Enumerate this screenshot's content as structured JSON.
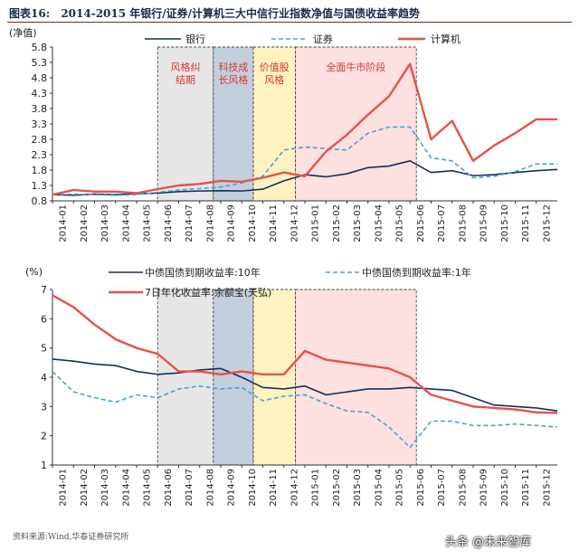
{
  "figure": {
    "label": "图表16:",
    "title": "2014-2015 年银行/证券/计算机三大中信行业指数净值与国债收益率趋势",
    "source": "资料来源:Wind,华泰证券研究所",
    "watermark": "头条 @未来智库"
  },
  "colors": {
    "bank": "#14305f",
    "securities": "#4aa3d8",
    "computer": "#e8504a",
    "shade_gray": "#e6e6e6",
    "shade_blue": "#c4cfdd",
    "shade_yellow": "#fff2c2",
    "shade_pink": "#fde0e0"
  },
  "chart_data": [
    {
      "type": "line",
      "ylabel": "(净值)",
      "ylim": [
        0.8,
        5.8
      ],
      "yticks": [
        "0.8",
        "1.3",
        "1.8",
        "2.3",
        "2.8",
        "3.3",
        "3.8",
        "4.3",
        "4.8",
        "5.3",
        "5.8"
      ],
      "xticks": [
        "2014-01",
        "2014-02",
        "2014-03",
        "2014-04",
        "2014-05",
        "2014-06",
        "2014-07",
        "2014-08",
        "2014-09",
        "2014-10",
        "2014-11",
        "2014-12",
        "2015-01",
        "2015-02",
        "2015-03",
        "2015-04",
        "2015-05",
        "2015-06",
        "2015-07",
        "2015-08",
        "2015-09",
        "2015-10",
        "2015-11",
        "2015-12"
      ],
      "x": [
        0,
        1,
        2,
        3,
        4,
        5,
        6,
        7,
        8,
        9,
        10,
        11,
        12,
        13,
        14,
        15,
        16,
        17,
        18,
        19,
        20,
        21,
        22,
        23,
        24
      ],
      "legend_placement": "top",
      "series": [
        {
          "name": "银行",
          "style": "solid",
          "values": [
            1.0,
            0.98,
            1.02,
            1.0,
            1.03,
            1.05,
            1.1,
            1.12,
            1.13,
            1.12,
            1.18,
            1.45,
            1.65,
            1.58,
            1.68,
            1.88,
            1.93,
            2.1,
            1.72,
            1.78,
            1.62,
            1.65,
            1.72,
            1.78,
            1.82
          ]
        },
        {
          "name": "证券",
          "style": "dashed",
          "values": [
            1.0,
            1.02,
            1.0,
            0.98,
            1.0,
            1.08,
            1.15,
            1.2,
            1.25,
            1.38,
            1.6,
            2.45,
            2.55,
            2.5,
            2.45,
            3.0,
            3.2,
            3.2,
            2.2,
            2.1,
            1.55,
            1.6,
            1.75,
            2.0,
            2.0
          ]
        },
        {
          "name": "计算机",
          "style": "solid",
          "values": [
            1.0,
            1.15,
            1.1,
            1.1,
            1.05,
            1.18,
            1.3,
            1.35,
            1.45,
            1.42,
            1.55,
            1.72,
            1.6,
            2.4,
            2.95,
            3.6,
            4.2,
            5.25,
            2.8,
            3.4,
            2.1,
            2.6,
            3.0,
            3.45,
            3.45
          ]
        }
      ],
      "bands": [
        {
          "label": "风格纠结期",
          "from": 5.0,
          "to": 7.65,
          "fill": "gray"
        },
        {
          "label": "科技成长风格",
          "from": 7.65,
          "to": 9.55,
          "fill": "blue"
        },
        {
          "label": "价值股风格",
          "from": 9.55,
          "to": 11.55,
          "fill": "yellow"
        },
        {
          "label": "全面牛市阶段",
          "from": 11.55,
          "to": 17.3,
          "fill": "pink"
        }
      ]
    },
    {
      "type": "line",
      "ylabel": "(%)",
      "ylim": [
        1,
        7
      ],
      "yticks": [
        "1",
        "2",
        "3",
        "4",
        "5",
        "6",
        "7"
      ],
      "xticks": [
        "2014-01",
        "2014-02",
        "2014-03",
        "2014-04",
        "2014-05",
        "2014-06",
        "2014-07",
        "2014-08",
        "2014-09",
        "2014-10",
        "2014-11",
        "2014-12",
        "2015-01",
        "2015-02",
        "2015-03",
        "2015-04",
        "2015-05",
        "2015-06",
        "2015-07",
        "2015-08",
        "2015-09",
        "2015-10",
        "2015-11",
        "2015-12"
      ],
      "x": [
        0,
        1,
        2,
        3,
        4,
        5,
        6,
        7,
        8,
        9,
        10,
        11,
        12,
        13,
        14,
        15,
        16,
        17,
        18,
        19,
        20,
        21,
        22,
        23,
        24
      ],
      "legend_placement": "top",
      "series": [
        {
          "name": "中债国债到期收益率:10年",
          "style": "solid",
          "values": [
            4.62,
            4.55,
            4.45,
            4.4,
            4.2,
            4.1,
            4.15,
            4.25,
            4.3,
            4.0,
            3.65,
            3.6,
            3.7,
            3.4,
            3.5,
            3.6,
            3.6,
            3.65,
            3.6,
            3.55,
            3.3,
            3.05,
            3.0,
            2.95,
            2.85
          ]
        },
        {
          "name": "中债国债到期收益率:1年",
          "style": "dashed",
          "values": [
            4.2,
            3.5,
            3.3,
            3.15,
            3.4,
            3.3,
            3.6,
            3.7,
            3.6,
            3.65,
            3.2,
            3.35,
            3.4,
            3.1,
            2.85,
            2.8,
            2.3,
            1.6,
            2.5,
            2.5,
            2.35,
            2.35,
            2.4,
            2.35,
            2.3
          ]
        },
        {
          "name": "7日年化收益率:余额宝(天弘)",
          "style": "solid",
          "values": [
            6.8,
            6.4,
            5.8,
            5.3,
            5.0,
            4.8,
            4.2,
            4.2,
            4.1,
            4.2,
            4.1,
            4.1,
            4.9,
            4.6,
            4.5,
            4.4,
            4.3,
            4.0,
            3.4,
            3.2,
            3.0,
            2.95,
            2.9,
            2.8,
            2.78
          ]
        }
      ],
      "bands": [
        {
          "from": 5.0,
          "to": 7.65,
          "fill": "gray"
        },
        {
          "from": 7.65,
          "to": 9.55,
          "fill": "blue"
        },
        {
          "from": 9.55,
          "to": 11.55,
          "fill": "yellow"
        },
        {
          "from": 11.55,
          "to": 17.3,
          "fill": "pink"
        }
      ]
    }
  ]
}
